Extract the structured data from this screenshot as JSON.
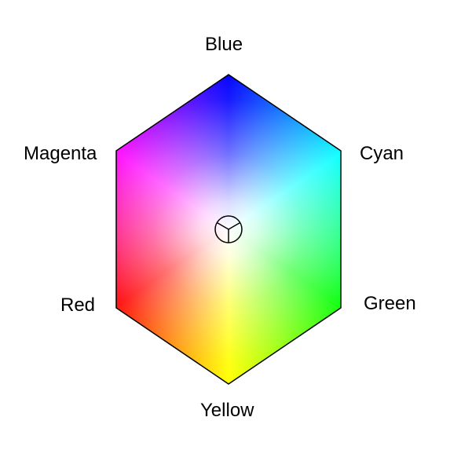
{
  "diagram": {
    "vertices": [
      {
        "id": "blue",
        "label": "Blue",
        "color": "#0000ff"
      },
      {
        "id": "cyan",
        "label": "Cyan",
        "color": "#00ffff"
      },
      {
        "id": "green",
        "label": "Green",
        "color": "#00ff00"
      },
      {
        "id": "yellow",
        "label": "Yellow",
        "color": "#ffff00"
      },
      {
        "id": "red",
        "label": "Red",
        "color": "#ff0000"
      },
      {
        "id": "magenta",
        "label": "Magenta",
        "color": "#ff00ff"
      }
    ],
    "center_color": "#ffffff",
    "outline_color": "#000000",
    "center_marker": "cursor-circle-icon"
  }
}
